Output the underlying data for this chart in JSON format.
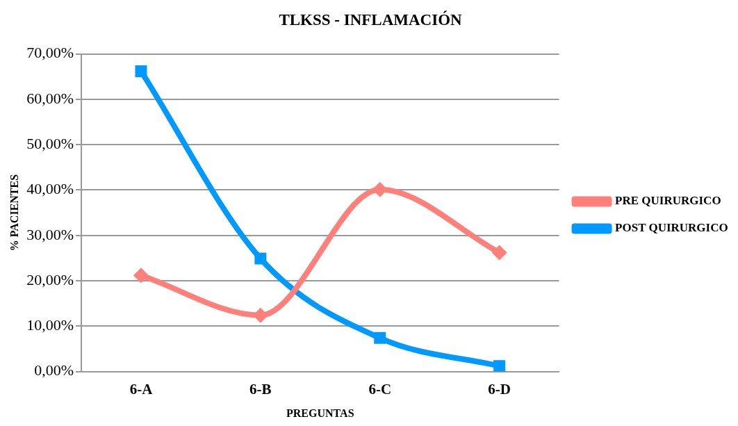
{
  "chart_data": {
    "type": "line",
    "title": "TLKSS - INFLAMACIÓN",
    "xlabel": "PREGUNTAS",
    "ylabel": "% PACIENTES",
    "categories": [
      "6-A",
      "6-B",
      "6-C",
      "6-D"
    ],
    "series": [
      {
        "name": "PRE QUIRURGICO",
        "color": "#ff7f7a",
        "marker": "diamond",
        "values": [
          21.2,
          12.4,
          40.1,
          26.2
        ]
      },
      {
        "name": "POST QUIRURGICO",
        "color": "#0099ff",
        "marker": "square",
        "values": [
          66.2,
          24.9,
          7.4,
          1.2
        ]
      }
    ],
    "ylim": [
      0,
      70
    ],
    "yticks": [
      {
        "value": 0,
        "label": "0,00%"
      },
      {
        "value": 10,
        "label": "10,00%"
      },
      {
        "value": 20,
        "label": "20,00%"
      },
      {
        "value": 30,
        "label": "30,00%"
      },
      {
        "value": 40,
        "label": "40,00%"
      },
      {
        "value": 50,
        "label": "50,00%"
      },
      {
        "value": 60,
        "label": "60,00%"
      },
      {
        "value": 70,
        "label": "70,00%"
      }
    ],
    "grid": "y",
    "legend": "right"
  }
}
